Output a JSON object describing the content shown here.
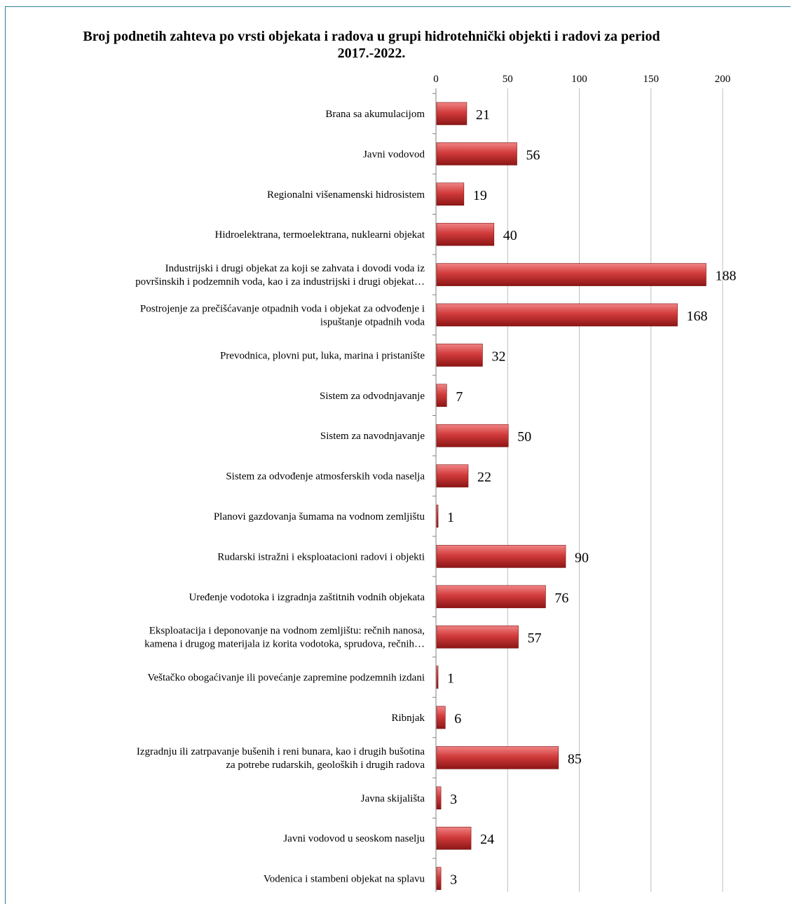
{
  "chart_data": {
    "type": "bar",
    "orientation": "horizontal",
    "title": "Broj podnetih zahteva po vrsti objekata i radova u grupi hidrotehnički objekti i radovi za period 2017.-2022.",
    "xlim": [
      0,
      200
    ],
    "xticks": [
      0,
      50,
      100,
      150,
      200
    ],
    "grid": true,
    "categories": [
      "Brana sa akumulacijom",
      "Javni vodovod",
      "Regionalni višenamenski hidrosistem",
      "Hidroelektrana, termoelektrana, nuklearni objekat",
      "Industrijski i drugi objekat za koji se zahvata i dovodi voda iz površinskih i podzemnih voda, kao i za industrijski i drugi objekat…",
      "Postrojenje za prečišćavanje otpadnih voda i objekat za odvođenje i ispuštanje otpadnih voda",
      "Prevodnica, plovni put, luka, marina i pristanište",
      "Sistem za odvodnjavanje",
      "Sistem za navodnjavanje",
      "Sistem za odvođenje atmosferskih voda naselja",
      "Planovi gazdovanja šumama na vodnom zemljištu",
      "Rudarski istražni i eksploatacioni radovi i objekti",
      "Uređenje vodotoka i izgradnja zaštitnih vodnih objekata",
      "Eksploatacija i deponovanje na vodnom zemljištu: rečnih nanosa, kamena i drugog materijala iz korita vodotoka, sprudova, rečnih…",
      "Veštačko obogaćivanje ili povećanje zapremine podzemnih izdani",
      "Ribnjak",
      "Izgradnju ili zatrpavanje bušenih i reni bunara, kao i drugih bušotina za potrebe rudarskih, geoloških i drugih radova",
      "Javna skijališta",
      "Javni vodovod u seoskom naselju",
      "Vodenica i stambeni objekat na splavu"
    ],
    "category_lines": [
      [
        "Brana sa akumulacijom"
      ],
      [
        "Javni vodovod"
      ],
      [
        "Regionalni višenamenski hidrosistem"
      ],
      [
        "Hidroelektrana, termoelektrana, nuklearni objekat"
      ],
      [
        "Industrijski i drugi objekat za koji se zahvata i dovodi voda iz",
        "površinskih i podzemnih voda, kao i za industrijski i drugi objekat…"
      ],
      [
        "Postrojenje za prečišćavanje otpadnih voda i objekat za odvođenje i",
        "ispuštanje otpadnih voda"
      ],
      [
        "Prevodnica, plovni put, luka, marina i pristanište"
      ],
      [
        "Sistem za odvodnjavanje"
      ],
      [
        "Sistem za navodnjavanje"
      ],
      [
        "Sistem za odvođenje atmosferskih voda naselja"
      ],
      [
        "Planovi gazdovanja šumama na vodnom zemljištu"
      ],
      [
        "Rudarski istražni i eksploatacioni radovi i objekti"
      ],
      [
        "Uređenje vodotoka i izgradnja zaštitnih vodnih objekata"
      ],
      [
        "Eksploatacija i deponovanje na vodnom zemljištu: rečnih nanosa,",
        "kamena i drugog materijala iz korita vodotoka, sprudova, rečnih…"
      ],
      [
        "Veštačko obogaćivanje ili povećanje zapremine podzemnih izdani"
      ],
      [
        "Ribnjak"
      ],
      [
        "Izgradnju ili zatrpavanje bušenih i reni bunara, kao i drugih bušotina",
        "za potrebe rudarskih, geoloških i drugih radova"
      ],
      [
        "Javna skijališta"
      ],
      [
        "Javni vodovod u seoskom naselju"
      ],
      [
        "Vodenica i stambeni objekat na splavu"
      ]
    ],
    "values": [
      21,
      56,
      19,
      40,
      188,
      168,
      32,
      7,
      50,
      22,
      1,
      90,
      76,
      57,
      1,
      6,
      85,
      3,
      24,
      3
    ],
    "colors": {
      "bar_light": "#f08585",
      "bar_mid": "#d23b3b",
      "bar_dark": "#8c1616",
      "grid": "#bfbfbf",
      "axis": "#808080",
      "frame": "#2f7f98"
    }
  }
}
